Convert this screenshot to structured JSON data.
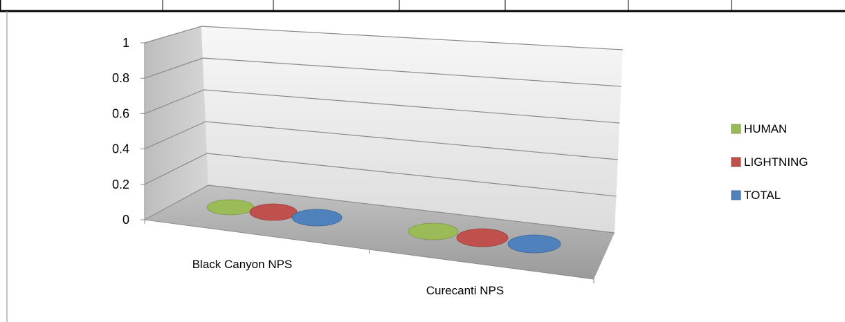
{
  "chart_data": {
    "type": "bar",
    "categories": [
      "Black Canyon NPS",
      "Curecanti NPS"
    ],
    "series": [
      {
        "name": "HUMAN",
        "values": [
          0,
          0
        ],
        "color": "#9BBB59"
      },
      {
        "name": "LIGHTNING",
        "values": [
          0,
          0
        ],
        "color": "#C0504D"
      },
      {
        "name": "TOTAL",
        "values": [
          0,
          0
        ],
        "color": "#4F81BD"
      }
    ],
    "yticks": [
      "0",
      "0.2",
      "0.4",
      "0.6",
      "0.8",
      "1"
    ],
    "ylim": [
      0,
      1
    ],
    "grid": true,
    "legend": "right",
    "style": "3d"
  }
}
